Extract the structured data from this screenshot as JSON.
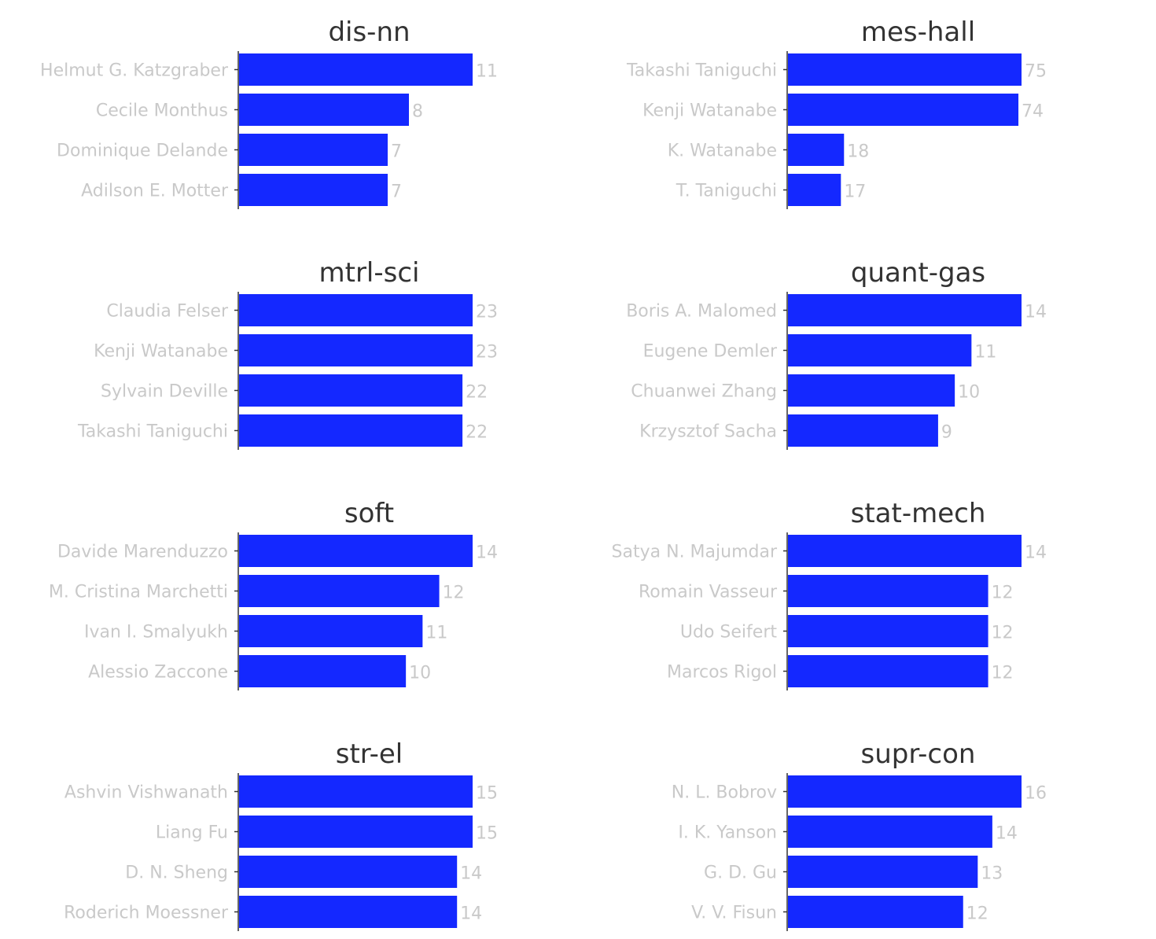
{
  "colors": {
    "bar": "#1428ff",
    "title_text": "#333333",
    "label_text": "#c9c9c9",
    "axis": "#333333"
  },
  "chart_data": [
    {
      "type": "bar",
      "orientation": "horizontal",
      "title": "dis-nn",
      "categories": [
        "Helmut G. Katzgraber",
        "Cecile Monthus",
        "Dominique Delande",
        "Adilson E. Motter"
      ],
      "values": [
        11,
        8,
        7,
        7
      ]
    },
    {
      "type": "bar",
      "orientation": "horizontal",
      "title": "mes-hall",
      "categories": [
        "Takashi Taniguchi",
        "Kenji Watanabe",
        "K. Watanabe",
        "T. Taniguchi"
      ],
      "values": [
        75,
        74,
        18,
        17
      ]
    },
    {
      "type": "bar",
      "orientation": "horizontal",
      "title": "mtrl-sci",
      "categories": [
        "Claudia Felser",
        "Kenji Watanabe",
        "Sylvain Deville",
        "Takashi Taniguchi"
      ],
      "values": [
        23,
        23,
        22,
        22
      ]
    },
    {
      "type": "bar",
      "orientation": "horizontal",
      "title": "quant-gas",
      "categories": [
        "Boris A. Malomed",
        "Eugene Demler",
        "Chuanwei Zhang",
        "Krzysztof Sacha"
      ],
      "values": [
        14,
        11,
        10,
        9
      ]
    },
    {
      "type": "bar",
      "orientation": "horizontal",
      "title": "soft",
      "categories": [
        "Davide Marenduzzo",
        "M. Cristina Marchetti",
        "Ivan I. Smalyukh",
        "Alessio Zaccone"
      ],
      "values": [
        14,
        12,
        11,
        10
      ]
    },
    {
      "type": "bar",
      "orientation": "horizontal",
      "title": "stat-mech",
      "categories": [
        "Satya N. Majumdar",
        "Romain Vasseur",
        "Udo Seifert",
        "Marcos Rigol"
      ],
      "values": [
        14,
        12,
        12,
        12
      ]
    },
    {
      "type": "bar",
      "orientation": "horizontal",
      "title": "str-el",
      "categories": [
        "Ashvin Vishwanath",
        "Liang Fu",
        "D. N. Sheng",
        "Roderich Moessner"
      ],
      "values": [
        15,
        15,
        14,
        14
      ]
    },
    {
      "type": "bar",
      "orientation": "horizontal",
      "title": "supr-con",
      "categories": [
        "N. L. Bobrov",
        "I. K. Yanson",
        "G. D. Gu",
        "V. V. Fisun"
      ],
      "values": [
        16,
        14,
        13,
        12
      ]
    }
  ]
}
